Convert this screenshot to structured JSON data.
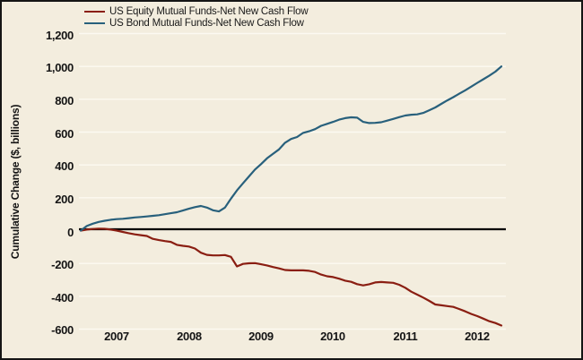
{
  "legend": {
    "items": [
      {
        "id": "equity",
        "label": "US Equity Mutual Funds-Net New Cash Flow",
        "color": "#8a1e12"
      },
      {
        "id": "bond",
        "label": "US Bond Mutual Funds-Net New Cash Flow",
        "color": "#28607c"
      }
    ]
  },
  "y_axis": {
    "title": "Cumulative Change ($, billions)",
    "ticks": [
      {
        "label": "1,200",
        "value": 1200
      },
      {
        "label": "1,000",
        "value": 1000
      },
      {
        "label": "800",
        "value": 800
      },
      {
        "label": "600",
        "value": 600
      },
      {
        "label": "400",
        "value": 400
      },
      {
        "label": "200",
        "value": 200
      },
      {
        "label": "0",
        "value": 0
      },
      {
        "label": "-200",
        "value": -200
      },
      {
        "label": "-400",
        "value": -400
      },
      {
        "label": "-600",
        "value": -600
      }
    ]
  },
  "x_axis": {
    "ticks": [
      {
        "label": "2007",
        "month": 6
      },
      {
        "label": "2008",
        "month": 18
      },
      {
        "label": "2009",
        "month": 30
      },
      {
        "label": "2010",
        "month": 42
      },
      {
        "label": "2011",
        "month": 54
      },
      {
        "label": "2012",
        "month": 66
      }
    ]
  },
  "chart_data": {
    "type": "line",
    "x_unit": "months since Jan 2007, monthly points Jan 2007 through late 2012",
    "x_range": [
      0,
      70
    ],
    "ylim": [
      -600,
      1200
    ],
    "grid": true,
    "zero_line": true,
    "legend_position": "top-left",
    "series": [
      {
        "name": "US Equity Mutual Funds-Net New Cash Flow",
        "color": "#8a1e12",
        "values": [
          0,
          6,
          10,
          12,
          11,
          6,
          0,
          -8,
          -16,
          -23,
          -28,
          -33,
          -50,
          -58,
          -64,
          -69,
          -87,
          -93,
          -97,
          -109,
          -135,
          -148,
          -151,
          -151,
          -149,
          -160,
          -218,
          -203,
          -199,
          -198,
          -205,
          -212,
          -222,
          -230,
          -240,
          -242,
          -242,
          -242,
          -245,
          -252,
          -268,
          -278,
          -283,
          -293,
          -305,
          -312,
          -326,
          -334,
          -327,
          -316,
          -313,
          -316,
          -318,
          -330,
          -348,
          -372,
          -390,
          -408,
          -428,
          -450,
          -455,
          -460,
          -465,
          -478,
          -492,
          -508,
          -521,
          -536,
          -552,
          -563,
          -578
        ]
      },
      {
        "name": "US Bond Mutual Funds-Net New Cash Flow",
        "color": "#28607c",
        "values": [
          0,
          28,
          42,
          53,
          60,
          66,
          70,
          72,
          76,
          80,
          83,
          86,
          90,
          94,
          100,
          106,
          112,
          122,
          133,
          143,
          150,
          140,
          124,
          117,
          140,
          195,
          245,
          288,
          330,
          372,
          405,
          440,
          468,
          495,
          535,
          558,
          570,
          595,
          605,
          618,
          638,
          650,
          662,
          676,
          685,
          690,
          688,
          662,
          655,
          656,
          660,
          670,
          680,
          691,
          701,
          706,
          708,
          717,
          733,
          750,
          772,
          793,
          813,
          834,
          855,
          877,
          900,
          922,
          944,
          968,
          1000
        ]
      }
    ]
  },
  "colors": {
    "background": "#f3edde",
    "gridline": "#fcf9f1",
    "zero_line": "#000000",
    "text": "#141414",
    "border": "#151515"
  }
}
